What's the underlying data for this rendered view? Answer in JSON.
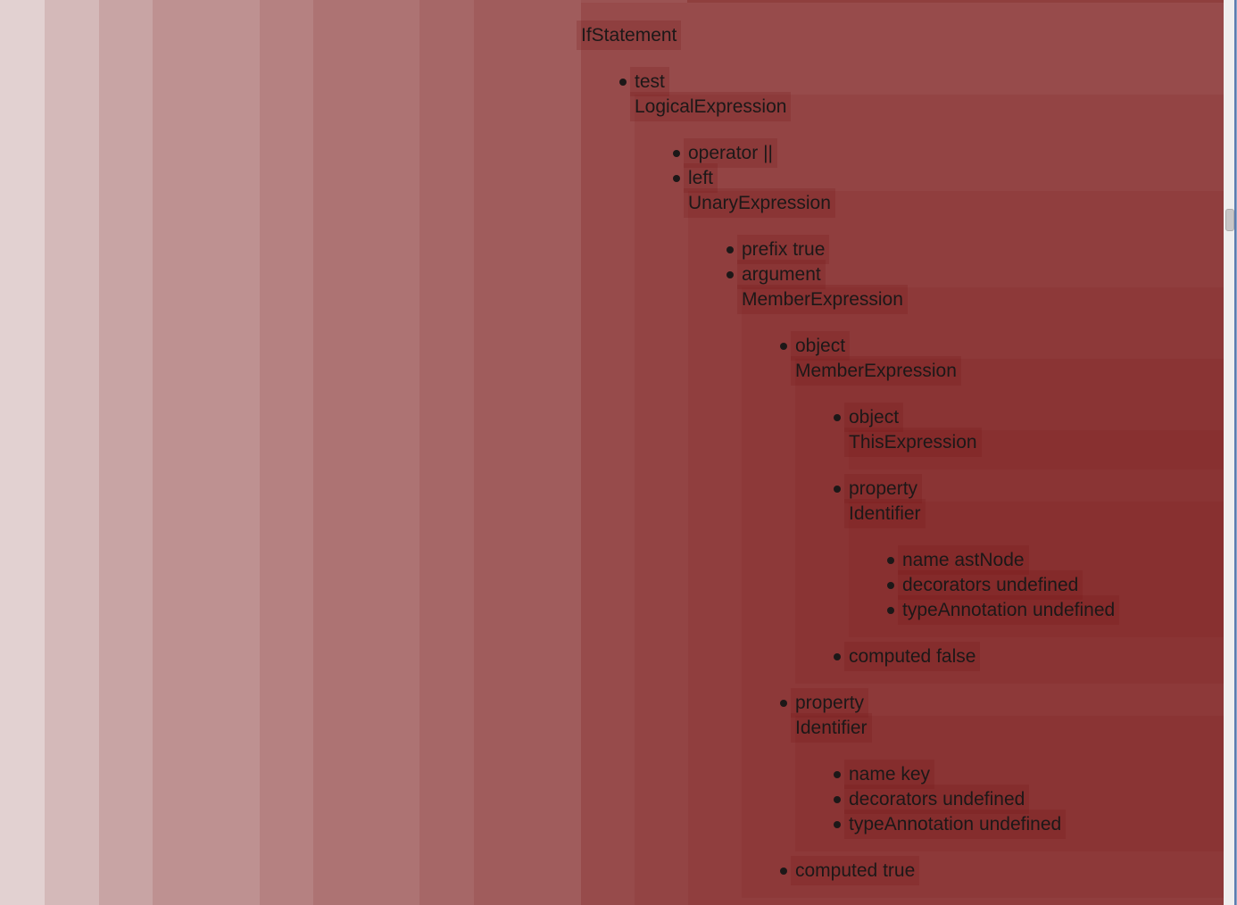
{
  "theme": {
    "base": "#e2d1d1",
    "layer_overlay": "rgba(120,25,22,0.13)",
    "highlight": "rgba(120,25,22,0.22)",
    "remnant": "rgba(120,25,22,0.35)",
    "text": "#1c1818",
    "scrollbar_track": "#efeeee",
    "scrollbar_thumb": "#c8c6c7",
    "scrollbar_thumb_border": "#adabac",
    "window_edge": "#5b7cb0",
    "window_edge_light": "#8fa7c9"
  },
  "ast": {
    "type": "IfStatement",
    "children": [
      {
        "key": "test",
        "node": {
          "type": "LogicalExpression",
          "children": [
            {
              "key": "operator",
              "value": "||"
            },
            {
              "key": "left",
              "node": {
                "type": "UnaryExpression",
                "children": [
                  {
                    "key": "prefix",
                    "value": "true"
                  },
                  {
                    "key": "argument",
                    "node": {
                      "type": "MemberExpression",
                      "children": [
                        {
                          "key": "object",
                          "node": {
                            "type": "MemberExpression",
                            "children": [
                              {
                                "key": "object",
                                "node": {
                                  "type": "ThisExpression",
                                  "children": []
                                }
                              },
                              {
                                "key": "property",
                                "node": {
                                  "type": "Identifier",
                                  "children": [
                                    {
                                      "key": "name",
                                      "value": "astNode"
                                    },
                                    {
                                      "key": "decorators",
                                      "value": "undefined"
                                    },
                                    {
                                      "key": "typeAnnotation",
                                      "value": "undefined"
                                    }
                                  ]
                                }
                              },
                              {
                                "key": "computed",
                                "value": "false"
                              }
                            ]
                          }
                        },
                        {
                          "key": "property",
                          "node": {
                            "type": "Identifier",
                            "children": [
                              {
                                "key": "name",
                                "value": "key"
                              },
                              {
                                "key": "decorators",
                                "value": "undefined"
                              },
                              {
                                "key": "typeAnnotation",
                                "value": "undefined"
                              }
                            ]
                          }
                        },
                        {
                          "key": "computed",
                          "value": "true"
                        }
                      ]
                    }
                  }
                ]
              }
            }
          ]
        }
      }
    ]
  }
}
